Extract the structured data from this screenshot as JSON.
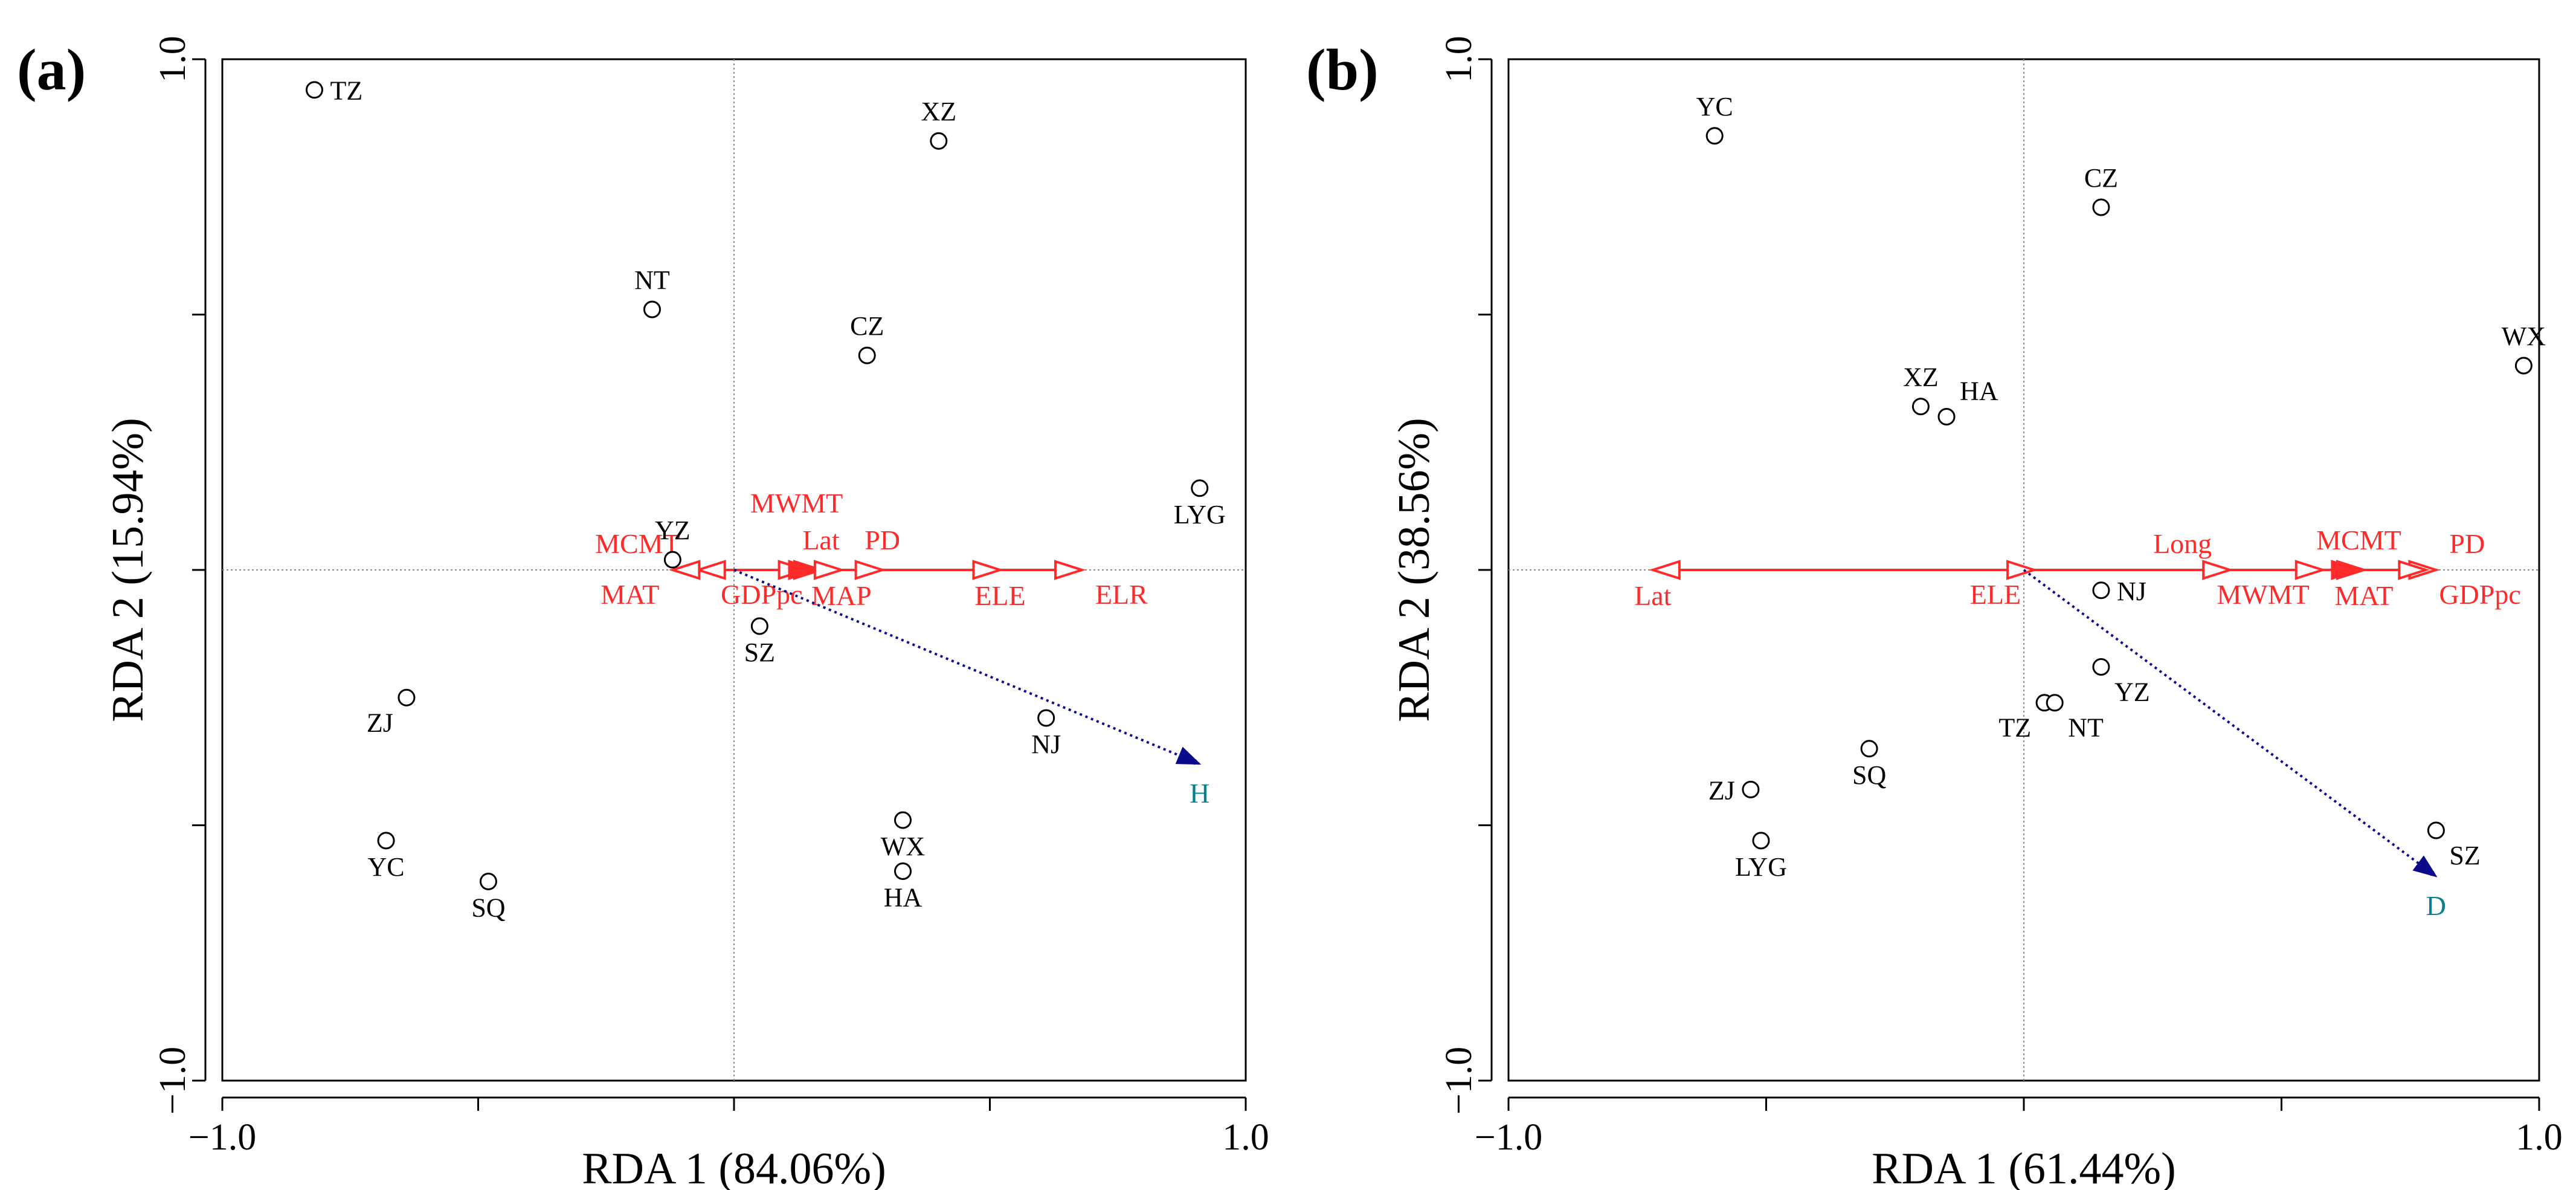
{
  "chart_data": [
    {
      "type": "scatter",
      "panel_label": "(a)",
      "title": "",
      "xlabel": "RDA 1 (84.06%)",
      "ylabel": "RDA 2 (15.94%)",
      "xlim": [
        -1.0,
        1.0
      ],
      "ylim": [
        -1.0,
        1.0
      ],
      "x_tick_labels": [
        "−1.0",
        "1.0"
      ],
      "y_tick_labels": [
        "1.0",
        "−1.0"
      ],
      "grid": false,
      "sites": [
        {
          "name": "TZ",
          "x": -0.82,
          "y": 0.94,
          "label_pos": "right"
        },
        {
          "name": "XZ",
          "x": 0.4,
          "y": 0.84,
          "label_pos": "above"
        },
        {
          "name": "NT",
          "x": -0.16,
          "y": 0.51,
          "label_pos": "above"
        },
        {
          "name": "CZ",
          "x": 0.26,
          "y": 0.42,
          "label_pos": "above"
        },
        {
          "name": "LYG",
          "x": 0.91,
          "y": 0.16,
          "label_pos": "below"
        },
        {
          "name": "YZ",
          "x": -0.12,
          "y": 0.02,
          "label_pos": "above"
        },
        {
          "name": "SZ",
          "x": 0.05,
          "y": -0.11,
          "label_pos": "below"
        },
        {
          "name": "ZJ",
          "x": -0.64,
          "y": -0.25,
          "label_pos": "below-left"
        },
        {
          "name": "NJ",
          "x": 0.61,
          "y": -0.29,
          "label_pos": "below"
        },
        {
          "name": "YC",
          "x": -0.68,
          "y": -0.53,
          "label_pos": "below"
        },
        {
          "name": "SQ",
          "x": -0.48,
          "y": -0.61,
          "label_pos": "below"
        },
        {
          "name": "WX",
          "x": 0.33,
          "y": -0.49,
          "label_pos": "below"
        },
        {
          "name": "HA",
          "x": 0.33,
          "y": -0.59,
          "label_pos": "below"
        }
      ],
      "env_vectors": [
        {
          "name": "MCMT",
          "x": -0.07,
          "label_pos": "above-left",
          "head": "open"
        },
        {
          "name": "MAT",
          "x": -0.12,
          "label_pos": "below-left",
          "head": "open"
        },
        {
          "name": "MWMT",
          "x": 0.14,
          "label_pos": "above-high",
          "head": "open"
        },
        {
          "name": "Lat",
          "x": 0.17,
          "label_pos": "above",
          "head": "filled"
        },
        {
          "name": "GDPpc",
          "x": 0.16,
          "label_pos": "below-left",
          "head": "filled"
        },
        {
          "name": "MAP",
          "x": 0.21,
          "label_pos": "below",
          "head": "open"
        },
        {
          "name": "PD",
          "x": 0.29,
          "label_pos": "above",
          "head": "open"
        },
        {
          "name": "ELE",
          "x": 0.52,
          "label_pos": "below",
          "head": "open"
        },
        {
          "name": "ELR",
          "x": 0.68,
          "label_pos": "below-right",
          "head": "open"
        }
      ],
      "response": {
        "name": "H",
        "x": 0.91,
        "y": -0.38
      }
    },
    {
      "type": "scatter",
      "panel_label": "(b)",
      "title": "",
      "xlabel": "RDA 1 (61.44%)",
      "ylabel": "RDA 2 (38.56%)",
      "xlim": [
        -1.0,
        1.0
      ],
      "ylim": [
        -1.0,
        1.0
      ],
      "x_tick_labels": [
        "−1.0",
        "1.0"
      ],
      "y_tick_labels": [
        "1.0",
        "−1.0"
      ],
      "grid": false,
      "sites": [
        {
          "name": "YC",
          "x": -0.6,
          "y": 0.85,
          "label_pos": "above"
        },
        {
          "name": "CZ",
          "x": 0.15,
          "y": 0.71,
          "label_pos": "above"
        },
        {
          "name": "WX",
          "x": 0.97,
          "y": 0.4,
          "label_pos": "above"
        },
        {
          "name": "XZ",
          "x": -0.2,
          "y": 0.32,
          "label_pos": "above"
        },
        {
          "name": "HA",
          "x": -0.15,
          "y": 0.3,
          "label_pos": "above-right"
        },
        {
          "name": "NJ",
          "x": 0.15,
          "y": -0.04,
          "label_pos": "right"
        },
        {
          "name": "YZ",
          "x": 0.15,
          "y": -0.19,
          "label_pos": "below-right"
        },
        {
          "name": "TZ",
          "x": 0.04,
          "y": -0.26,
          "label_pos": "below-left"
        },
        {
          "name": "NT",
          "x": 0.06,
          "y": -0.26,
          "label_pos": "below-right"
        },
        {
          "name": "SQ",
          "x": -0.3,
          "y": -0.35,
          "label_pos": "below"
        },
        {
          "name": "ZJ",
          "x": -0.53,
          "y": -0.43,
          "label_pos": "left"
        },
        {
          "name": "LYG",
          "x": -0.51,
          "y": -0.53,
          "label_pos": "below"
        },
        {
          "name": "SZ",
          "x": 0.8,
          "y": -0.51,
          "label_pos": "below-right"
        }
      ],
      "env_vectors": [
        {
          "name": "Lat",
          "x": -0.72,
          "label_pos": "below",
          "head": "open"
        },
        {
          "name": "ELE",
          "x": 0.02,
          "label_pos": "below-left",
          "head": "open"
        },
        {
          "name": "Long",
          "x": 0.4,
          "label_pos": "above-left",
          "head": "open"
        },
        {
          "name": "MWMT",
          "x": 0.58,
          "label_pos": "below-left",
          "head": "open"
        },
        {
          "name": "MCMT",
          "x": 0.65,
          "label_pos": "above",
          "head": "filled"
        },
        {
          "name": "MAT",
          "x": 0.66,
          "label_pos": "below",
          "head": "filled"
        },
        {
          "name": "PD",
          "x": 0.8,
          "label_pos": "above-right",
          "head": "open"
        },
        {
          "name": "GDPpc",
          "x": 0.78,
          "label_pos": "below-right",
          "head": "open"
        }
      ],
      "response": {
        "name": "D",
        "x": 0.8,
        "y": -0.6
      }
    }
  ]
}
